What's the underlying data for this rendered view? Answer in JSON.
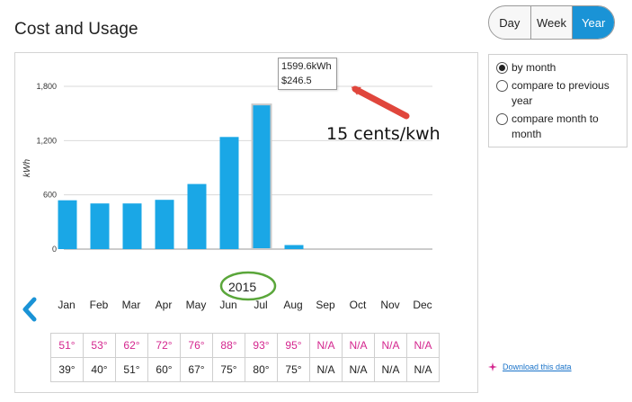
{
  "page": {
    "title": "Cost and Usage"
  },
  "view_toggle": {
    "options": [
      "Day",
      "Week",
      "Year"
    ],
    "active": "Year",
    "active_color": "#1a93d6"
  },
  "chart_data": {
    "type": "bar",
    "categories": [
      "Jan",
      "Feb",
      "Mar",
      "Apr",
      "May",
      "Jun",
      "Jul",
      "Aug",
      "Sep",
      "Oct",
      "Nov",
      "Dec"
    ],
    "values": [
      540,
      505,
      505,
      545,
      720,
      1240,
      1599.6,
      45,
      null,
      null,
      null,
      null
    ],
    "ylabel": "kWh",
    "yticks": [
      "1,800",
      "1,200",
      "600",
      "0"
    ],
    "ylim": [
      0,
      1800
    ],
    "grid": true,
    "bar_color": "#1aa7e6",
    "highlighted_index": 6
  },
  "tooltip": {
    "usage": "1599.6kWh",
    "cost": "$246.5"
  },
  "annotations": {
    "note": "15 cents/kwh",
    "arrow_color": "#e0463c",
    "circle_color": "#5aa63a"
  },
  "year": "2015",
  "months": [
    "Jan",
    "Feb",
    "Mar",
    "Apr",
    "May",
    "Jun",
    "Jul",
    "Aug",
    "Sep",
    "Oct",
    "Nov",
    "Dec"
  ],
  "temps": {
    "high": [
      "51°",
      "53°",
      "62°",
      "72°",
      "76°",
      "88°",
      "93°",
      "95°",
      "N/A",
      "N/A",
      "N/A",
      "N/A"
    ],
    "low": [
      "39°",
      "40°",
      "51°",
      "60°",
      "67°",
      "75°",
      "80°",
      "75°",
      "N/A",
      "N/A",
      "N/A",
      "N/A"
    ],
    "high_color": "#d4268e"
  },
  "options": [
    {
      "label": "by month",
      "checked": true
    },
    {
      "label": "compare to previous year",
      "checked": false
    },
    {
      "label": "compare month to month",
      "checked": false
    }
  ],
  "download": {
    "label": "Download this data",
    "icon": "plus-sparkle-icon",
    "icon_color": "#d4268e"
  },
  "icons": {
    "prev": "chevron-left-icon",
    "prev_color": "#1a93d6"
  }
}
